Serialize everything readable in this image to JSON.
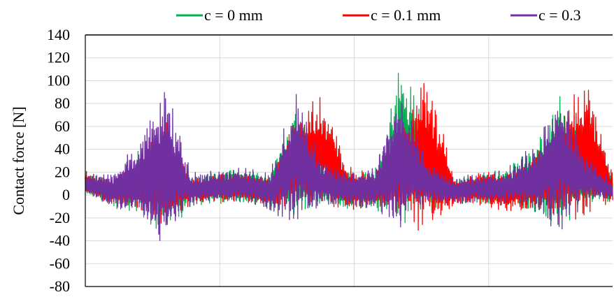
{
  "chart_data": {
    "type": "line",
    "ylabel": "Contact force [N]",
    "xlabel": "",
    "ylim": [
      -80,
      140
    ],
    "yticks": [
      140,
      120,
      100,
      80,
      60,
      40,
      20,
      0,
      -20,
      -40,
      -60,
      -80
    ],
    "grid": true,
    "legend": "top",
    "series": [
      {
        "name": "c = 0 mm",
        "color": "#00b050"
      },
      {
        "name": "c = 0.1 mm",
        "color": "#ff0000"
      },
      {
        "name": "c = 0.3",
        "color": "#7030a0"
      }
    ],
    "x": [
      0,
      10,
      20,
      30,
      40,
      50,
      60,
      70,
      80,
      90,
      100,
      110,
      120,
      130,
      140,
      150,
      160,
      170,
      180,
      190,
      200
    ],
    "envelopes": [
      {
        "lo": [
          0,
          -10,
          -20,
          -40,
          -10,
          -8,
          -8,
          -12,
          -20,
          -10,
          -12,
          -15,
          -35,
          -20,
          -8,
          -8,
          -10,
          -20,
          -30,
          -10,
          -5
        ],
        "hi": [
          20,
          15,
          40,
          60,
          18,
          20,
          25,
          20,
          80,
          30,
          20,
          25,
          125,
          60,
          15,
          20,
          25,
          40,
          90,
          40,
          15
        ]
      },
      {
        "lo": [
          0,
          -8,
          -15,
          -30,
          -8,
          -6,
          -6,
          -10,
          -15,
          -8,
          -15,
          -10,
          -20,
          -40,
          -8,
          -10,
          -15,
          -15,
          -20,
          -25,
          -10
        ],
        "hi": [
          22,
          12,
          35,
          72,
          15,
          18,
          20,
          15,
          70,
          90,
          25,
          20,
          60,
          115,
          15,
          22,
          20,
          35,
          75,
          105,
          20
        ]
      },
      {
        "lo": [
          0,
          -10,
          -20,
          -50,
          -10,
          -8,
          -8,
          -14,
          -28,
          -10,
          -10,
          -12,
          -32,
          -10,
          -8,
          -8,
          -10,
          -18,
          -35,
          -5,
          -5
        ],
        "hi": [
          18,
          20,
          50,
          105,
          20,
          22,
          25,
          20,
          95,
          30,
          20,
          25,
          95,
          30,
          15,
          20,
          25,
          45,
          95,
          35,
          12
        ]
      }
    ]
  }
}
